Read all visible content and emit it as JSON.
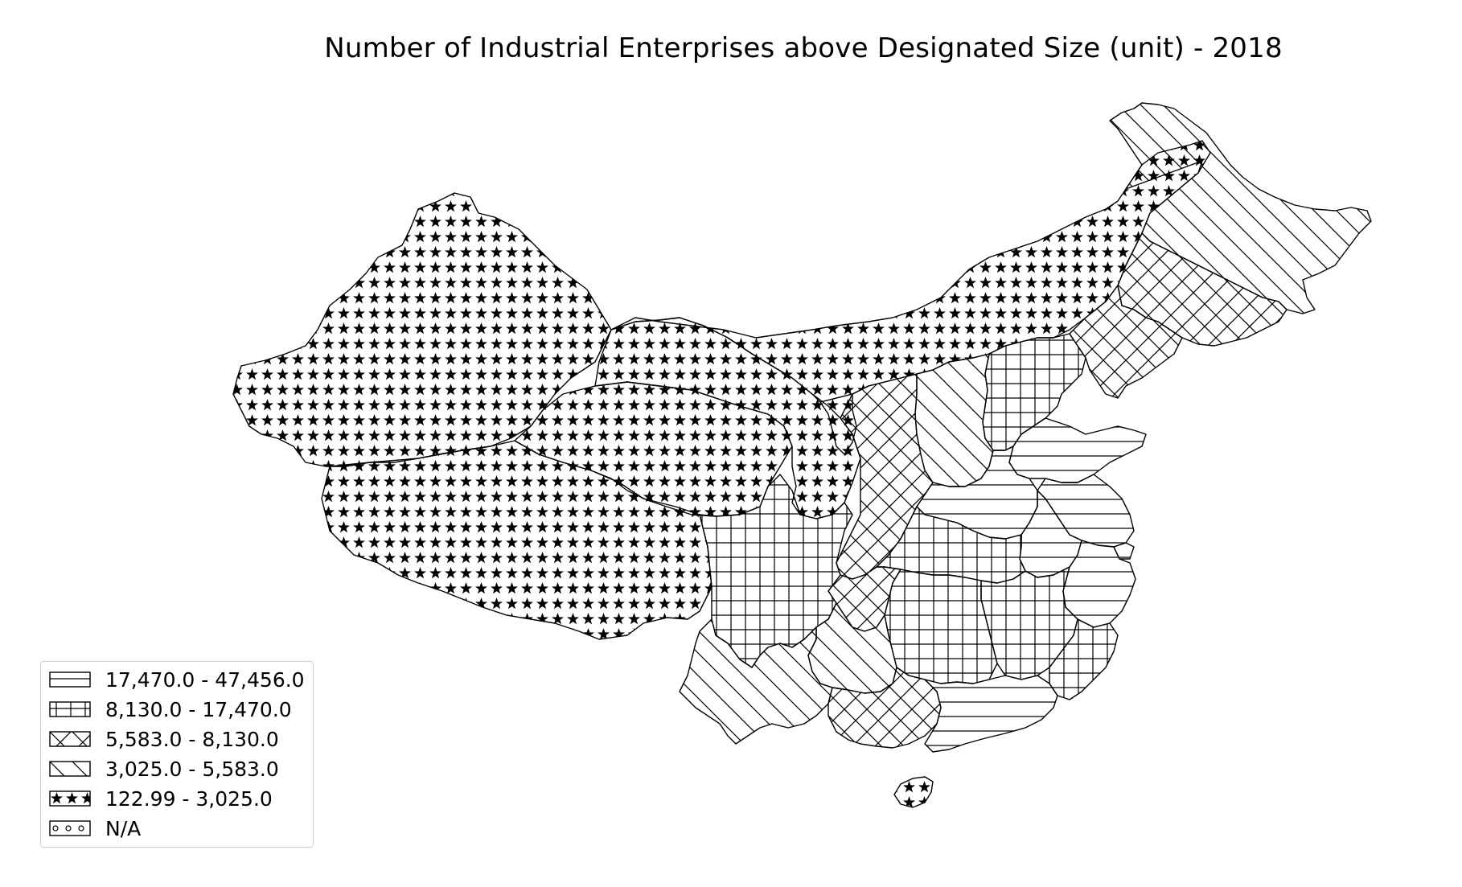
{
  "title": "Number of Industrial Enterprises above Designated Size (unit) - 2018",
  "legend": {
    "placement": "lower-left",
    "items": [
      {
        "label": "17,470.0 - 47,456.0",
        "pattern": "horizontal-lines"
      },
      {
        "label": "8,130.0 - 17,470.0",
        "pattern": "grid"
      },
      {
        "label": "5,583.0 - 8,130.0",
        "pattern": "cross-hatch"
      },
      {
        "label": "3,025.0 - 5,583.0",
        "pattern": "diagonal-lines"
      },
      {
        "label": "122.99 - 3,025.0",
        "pattern": "stars"
      },
      {
        "label": "N/A",
        "pattern": "circles"
      }
    ]
  },
  "colors": {
    "stroke": "#000000",
    "background": "#ffffff",
    "legend_border": "#cfcfcf"
  }
}
